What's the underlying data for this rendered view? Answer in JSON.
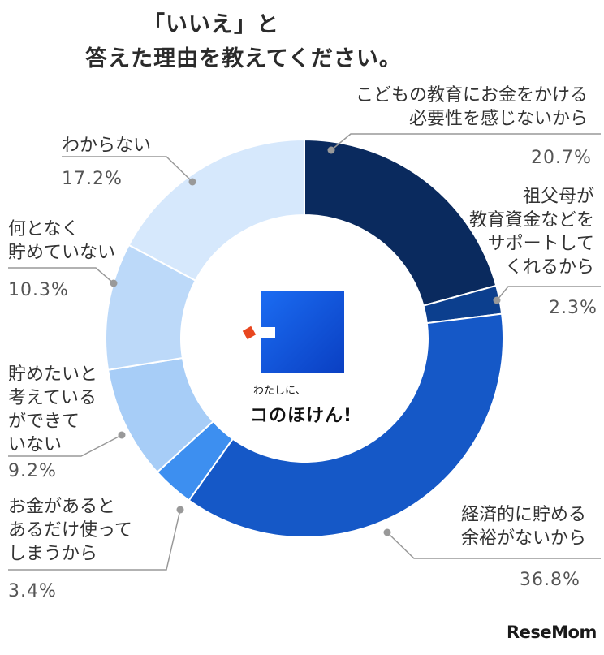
{
  "title": {
    "line1": "「いいえ」と",
    "line2": "答えた理由を教えてください。"
  },
  "chart_data": {
    "type": "pie",
    "categories": [
      "こどもの教育にお金をかける必要性を感じないから",
      "祖父母が教育資金などをサポートしてくれるから",
      "経済的に貯める余裕がないから",
      "お金があるとあるだけ使ってしまうから",
      "貯めたいと考えているができていない",
      "何となく貯めていない",
      "わからない"
    ],
    "values": [
      20.7,
      2.3,
      36.8,
      3.4,
      9.2,
      10.3,
      17.2
    ],
    "colors": [
      "#0a2a5e",
      "#0c3f8e",
      "#1558c7",
      "#3d8ff0",
      "#a7cdf7",
      "#bcd9f9",
      "#d6e8fc"
    ],
    "value_labels": [
      "20.7%",
      "2.3%",
      "36.8%",
      "3.4%",
      "9.2%",
      "10.3%",
      "17.2%"
    ]
  },
  "labels": {
    "s0": [
      "こどもの教育にお金をかける",
      "必要性を感じないから"
    ],
    "s1": [
      "祖父母が",
      "教育資金などを",
      "サポートして",
      "くれるから"
    ],
    "s2": [
      "経済的に貯める",
      "余裕がないから"
    ],
    "s3": [
      "お金があると",
      "あるだけ使って",
      "しまうから"
    ],
    "s4": [
      "貯めたいと",
      "考えている",
      "ができて",
      "いない"
    ],
    "s5": [
      "何となく",
      "貯めていない"
    ],
    "s6": [
      "わからない"
    ]
  },
  "center": {
    "small": "わたしに、",
    "big": "コのほけん!"
  },
  "watermark": {
    "text_a": "Rese",
    "text_b": "Mom"
  }
}
